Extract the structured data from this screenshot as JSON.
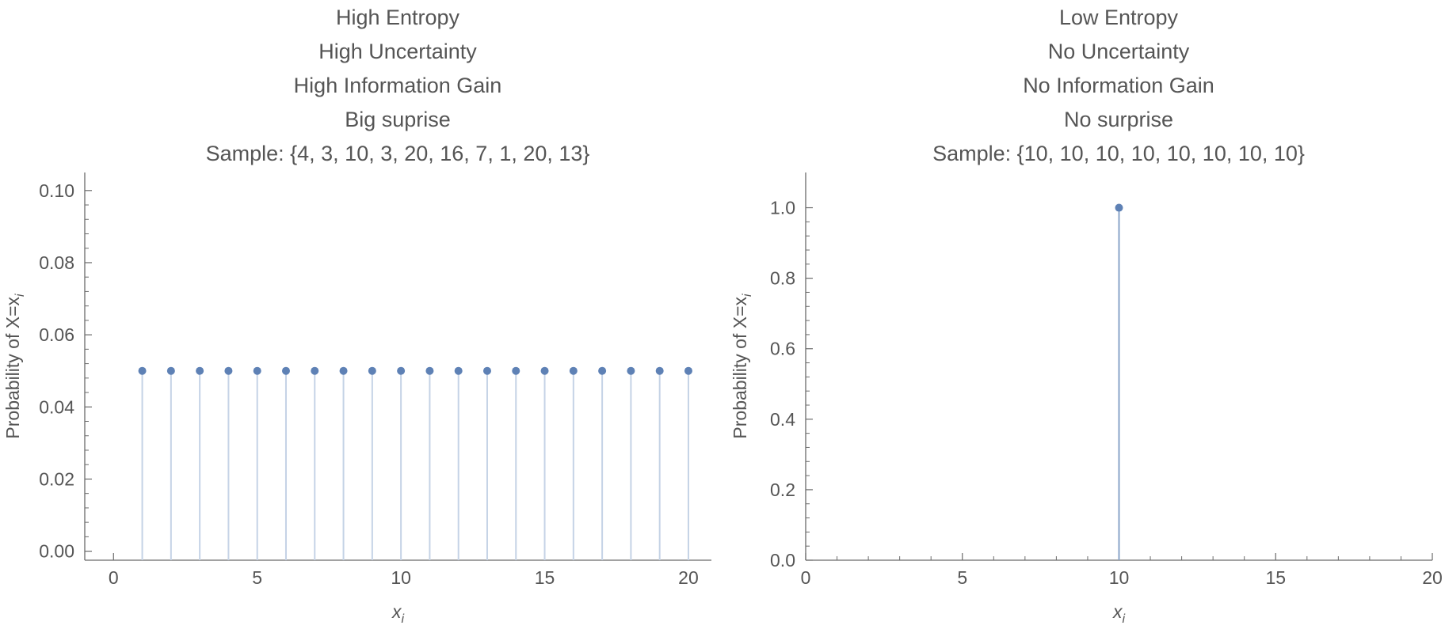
{
  "chart_data": [
    {
      "type": "stem",
      "title_lines": [
        "High Entropy",
        "High Uncertainty",
        "High Information Gain",
        "Big suprise",
        "Sample: {4, 3, 10, 3, 20, 16, 7, 1, 20, 13}"
      ],
      "xlabel": "x",
      "xlabel_sub": "i",
      "ylabel": "Probability of X=x",
      "ylabel_sub": "i",
      "xlim": [
        -1,
        20.8
      ],
      "ylim": [
        -0.0025,
        0.105
      ],
      "xticks": [
        0,
        5,
        10,
        15,
        20
      ],
      "xticks_minor": [
        1,
        2,
        3,
        4,
        6,
        7,
        8,
        9,
        11,
        12,
        13,
        14,
        16,
        17,
        18,
        19
      ],
      "yticks": [
        0.0,
        0.02,
        0.04,
        0.06,
        0.08,
        0.1
      ],
      "ytick_labels": [
        "0.00",
        "0.02",
        "0.04",
        "0.06",
        "0.08",
        "0.10"
      ],
      "x": [
        1,
        2,
        3,
        4,
        5,
        6,
        7,
        8,
        9,
        10,
        11,
        12,
        13,
        14,
        15,
        16,
        17,
        18,
        19,
        20
      ],
      "y": [
        0.05,
        0.05,
        0.05,
        0.05,
        0.05,
        0.05,
        0.05,
        0.05,
        0.05,
        0.05,
        0.05,
        0.05,
        0.05,
        0.05,
        0.05,
        0.05,
        0.05,
        0.05,
        0.05,
        0.05
      ],
      "point_color": "#5e81b5",
      "stem_color": "#c5d3e6",
      "grid": false
    },
    {
      "type": "stem",
      "title_lines": [
        "Low Entropy",
        "No Uncertainty",
        "No Information Gain",
        "No surprise",
        "Sample: {10, 10, 10, 10, 10, 10, 10, 10}"
      ],
      "xlabel": "x",
      "xlabel_sub": "i",
      "ylabel": "Probability of X=x",
      "ylabel_sub": "i",
      "xlim": [
        0,
        20
      ],
      "ylim": [
        0,
        1.1
      ],
      "xticks": [
        0,
        5,
        10,
        15,
        20
      ],
      "xticks_minor": [
        1,
        2,
        3,
        4,
        6,
        7,
        8,
        9,
        11,
        12,
        13,
        14,
        16,
        17,
        18,
        19
      ],
      "yticks": [
        0.0,
        0.2,
        0.4,
        0.6,
        0.8,
        1.0
      ],
      "ytick_labels": [
        "0.0",
        "0.2",
        "0.4",
        "0.6",
        "0.8",
        "1.0"
      ],
      "x": [
        10
      ],
      "y": [
        1.0
      ],
      "point_color": "#5e81b5",
      "stem_color": "#8aa4c8",
      "grid": false
    }
  ]
}
